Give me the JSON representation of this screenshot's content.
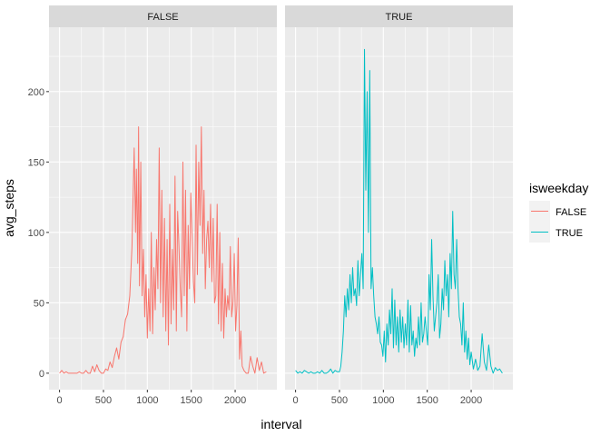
{
  "chart_data": {
    "type": "line",
    "xlabel": "interval",
    "ylabel": "avg_steps",
    "legend": {
      "title": "isweekday",
      "position": "right",
      "entries": [
        {
          "label": "FALSE",
          "color": "#F8766D"
        },
        {
          "label": "TRUE",
          "color": "#00BFC4"
        }
      ]
    },
    "xlim": [
      -120,
      2475
    ],
    "ylim": [
      -11.7,
      245.7
    ],
    "x_ticks": [
      0,
      500,
      1000,
      1500,
      2000
    ],
    "x_tick_labels": [
      "0",
      "500",
      "1000",
      "1500",
      "2000"
    ],
    "y_ticks": [
      0,
      50,
      100,
      150,
      200
    ],
    "y_tick_labels": [
      "0",
      "50",
      "100",
      "150",
      "200"
    ],
    "grid": true,
    "panels": [
      {
        "strip": "FALSE",
        "series": {
          "color": "#F8766D",
          "x": [
            0,
            25,
            50,
            75,
            100,
            125,
            150,
            175,
            200,
            225,
            250,
            275,
            300,
            325,
            350,
            375,
            400,
            425,
            450,
            475,
            500,
            525,
            550,
            575,
            600,
            625,
            650,
            675,
            700,
            725,
            750,
            775,
            800,
            825,
            850,
            865,
            875,
            890,
            900,
            910,
            925,
            940,
            955,
            970,
            985,
            1000,
            1015,
            1030,
            1045,
            1060,
            1075,
            1090,
            1105,
            1120,
            1135,
            1150,
            1165,
            1180,
            1195,
            1210,
            1225,
            1240,
            1255,
            1270,
            1285,
            1300,
            1315,
            1330,
            1345,
            1360,
            1375,
            1390,
            1405,
            1420,
            1435,
            1450,
            1465,
            1480,
            1495,
            1510,
            1525,
            1540,
            1555,
            1570,
            1585,
            1600,
            1615,
            1630,
            1645,
            1660,
            1675,
            1690,
            1705,
            1720,
            1735,
            1750,
            1765,
            1780,
            1795,
            1810,
            1825,
            1840,
            1855,
            1870,
            1885,
            1900,
            1915,
            1930,
            1945,
            1960,
            1975,
            1990,
            2005,
            2020,
            2035,
            2050,
            2065,
            2080,
            2100,
            2125,
            2150,
            2175,
            2200,
            2225,
            2250,
            2275,
            2300,
            2325,
            2355
          ],
          "values": [
            0,
            2,
            0,
            1,
            0,
            0,
            0,
            0,
            0,
            1,
            0,
            0,
            2,
            0,
            0,
            5,
            1,
            6,
            2,
            0,
            0,
            3,
            2,
            8,
            4,
            12,
            18,
            10,
            22,
            26,
            38,
            42,
            55,
            90,
            160,
            100,
            145,
            78,
            175,
            62,
            150,
            55,
            88,
            40,
            70,
            25,
            60,
            30,
            100,
            28,
            75,
            45,
            95,
            60,
            160,
            50,
            130,
            40,
            110,
            30,
            95,
            20,
            120,
            35,
            88,
            45,
            140,
            30,
            115,
            90,
            60,
            40,
            150,
            55,
            130,
            30,
            105,
            60,
            128,
            95,
            65,
            50,
            162,
            70,
            150,
            105,
            175,
            85,
            130,
            60,
            95,
            108,
            75,
            120,
            65,
            110,
            50,
            55,
            120,
            35,
            100,
            30,
            78,
            25,
            60,
            40,
            55,
            45,
            90,
            40,
            50,
            85,
            30,
            48,
            96,
            10,
            30,
            5,
            2,
            0,
            0,
            12,
            5,
            0,
            11,
            2,
            8,
            0,
            1
          ]
        }
      },
      {
        "strip": "TRUE",
        "series": {
          "color": "#00BFC4",
          "x": [
            0,
            25,
            50,
            75,
            100,
            125,
            150,
            175,
            200,
            225,
            250,
            275,
            300,
            325,
            350,
            375,
            400,
            425,
            450,
            475,
            500,
            515,
            530,
            545,
            560,
            575,
            590,
            605,
            620,
            635,
            650,
            665,
            680,
            695,
            710,
            725,
            740,
            755,
            770,
            785,
            800,
            815,
            830,
            845,
            860,
            875,
            890,
            905,
            920,
            935,
            950,
            965,
            980,
            995,
            1010,
            1025,
            1040,
            1055,
            1070,
            1085,
            1100,
            1115,
            1130,
            1145,
            1160,
            1175,
            1190,
            1205,
            1220,
            1235,
            1250,
            1265,
            1280,
            1295,
            1310,
            1325,
            1340,
            1355,
            1370,
            1385,
            1400,
            1415,
            1430,
            1445,
            1460,
            1475,
            1490,
            1505,
            1520,
            1535,
            1550,
            1565,
            1580,
            1595,
            1610,
            1625,
            1640,
            1655,
            1670,
            1685,
            1700,
            1715,
            1730,
            1745,
            1760,
            1775,
            1790,
            1805,
            1820,
            1835,
            1850,
            1865,
            1880,
            1895,
            1910,
            1925,
            1940,
            1955,
            1970,
            1985,
            2000,
            2025,
            2050,
            2075,
            2100,
            2125,
            2150,
            2175,
            2200,
            2225,
            2250,
            2275,
            2300,
            2325,
            2355
          ],
          "values": [
            2,
            0,
            1,
            0,
            2,
            1,
            0,
            1,
            0,
            0,
            1,
            0,
            2,
            0,
            0,
            1,
            3,
            0,
            2,
            1,
            1,
            5,
            15,
            30,
            55,
            40,
            60,
            45,
            70,
            50,
            75,
            55,
            60,
            48,
            80,
            55,
            70,
            85,
            60,
            230,
            130,
            200,
            100,
            215,
            60,
            75,
            55,
            40,
            35,
            28,
            40,
            22,
            20,
            12,
            30,
            8,
            35,
            20,
            45,
            28,
            60,
            18,
            52,
            20,
            40,
            15,
            45,
            22,
            40,
            18,
            35,
            20,
            52,
            15,
            48,
            20,
            30,
            12,
            25,
            18,
            40,
            20,
            50,
            22,
            28,
            40,
            30,
            20,
            70,
            45,
            95,
            55,
            30,
            40,
            50,
            70,
            25,
            35,
            60,
            45,
            80,
            55,
            70,
            40,
            85,
            60,
            115,
            70,
            60,
            95,
            60,
            40,
            35,
            20,
            50,
            15,
            30,
            10,
            25,
            6,
            15,
            3,
            10,
            2,
            5,
            28,
            8,
            2,
            20,
            5,
            0,
            4,
            2,
            3,
            0
          ]
        }
      }
    ]
  }
}
